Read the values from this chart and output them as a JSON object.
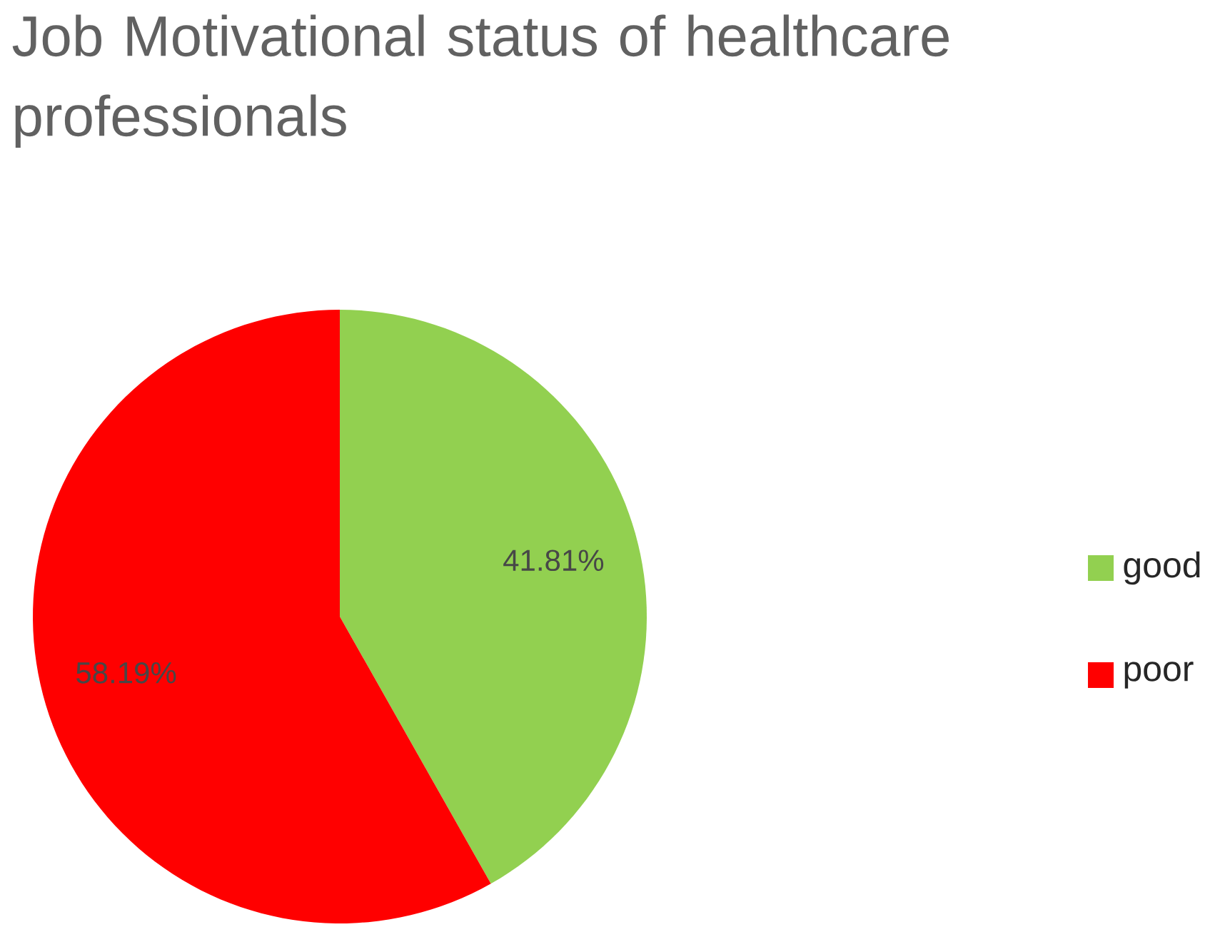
{
  "chart_data": {
    "type": "pie",
    "title": "Job Motivational status of healthcare professionals",
    "categories": [
      "good",
      "poor"
    ],
    "values": [
      41.81,
      58.19
    ],
    "colors": [
      "#92d050",
      "#ff0000"
    ],
    "value_labels": [
      "41.81%",
      "58.19%"
    ],
    "legend": "right"
  }
}
